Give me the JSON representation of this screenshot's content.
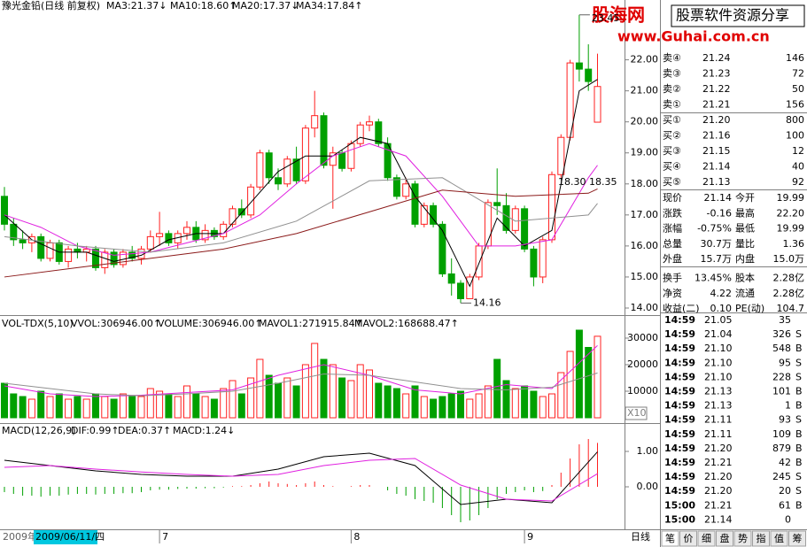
{
  "chart_data": [
    {
      "type": "candlestick",
      "title": "豫光金铅(日线 前复权)",
      "up_color": "#ff2020",
      "down_color": "#00a000",
      "categories": [
        null,
        null,
        null,
        null,
        null,
        null,
        null,
        null,
        null,
        null,
        null,
        null,
        null,
        null,
        null,
        null,
        null,
        "7",
        null,
        null,
        null,
        null,
        null,
        null,
        null,
        null,
        null,
        null,
        null,
        null,
        null,
        null,
        null,
        null,
        null,
        null,
        null,
        null,
        "8",
        null,
        null,
        null,
        null,
        null,
        null,
        null,
        null,
        null,
        null,
        null,
        null,
        null,
        null,
        null,
        null,
        null,
        null,
        "9",
        null,
        null,
        null,
        null,
        null,
        null,
        null,
        null
      ],
      "ohlc": [
        [
          17.6,
          17.9,
          16.5,
          16.7
        ],
        [
          16.7,
          16.9,
          16.0,
          16.2
        ],
        [
          16.2,
          16.5,
          15.9,
          16.1
        ],
        [
          16.1,
          16.4,
          15.8,
          16.3
        ],
        [
          16.3,
          16.4,
          15.5,
          15.6
        ],
        [
          15.6,
          16.2,
          15.5,
          16.1
        ],
        [
          16.1,
          16.2,
          15.4,
          15.5
        ],
        [
          15.5,
          16.0,
          15.3,
          15.9
        ],
        [
          15.9,
          16.1,
          15.6,
          15.8
        ],
        [
          15.8,
          16.0,
          15.5,
          15.9
        ],
        [
          15.9,
          16.0,
          15.2,
          15.3
        ],
        [
          15.3,
          15.9,
          15.1,
          15.8
        ],
        [
          15.8,
          15.9,
          15.3,
          15.4
        ],
        [
          15.4,
          15.9,
          15.3,
          15.8
        ],
        [
          15.8,
          16.0,
          15.5,
          15.6
        ],
        [
          15.6,
          16.0,
          15.4,
          15.9
        ],
        [
          15.9,
          16.5,
          15.8,
          16.3
        ],
        [
          16.3,
          17.1,
          16.0,
          16.4
        ],
        [
          16.4,
          16.5,
          16.0,
          16.1
        ],
        [
          16.1,
          16.5,
          15.9,
          16.4
        ],
        [
          16.4,
          16.8,
          16.2,
          16.6
        ],
        [
          16.6,
          16.8,
          16.1,
          16.2
        ],
        [
          16.2,
          16.7,
          16.1,
          16.5
        ],
        [
          16.5,
          16.6,
          16.2,
          16.3
        ],
        [
          16.3,
          16.8,
          16.2,
          16.7
        ],
        [
          16.7,
          17.3,
          16.6,
          17.2
        ],
        [
          17.2,
          17.5,
          16.9,
          17.0
        ],
        [
          17.0,
          18.0,
          16.9,
          17.9
        ],
        [
          17.9,
          19.1,
          17.8,
          19.0
        ],
        [
          19.0,
          19.1,
          18.0,
          18.2
        ],
        [
          18.2,
          18.5,
          17.8,
          18.0
        ],
        [
          18.0,
          18.9,
          17.9,
          18.8
        ],
        [
          18.8,
          19.2,
          18.0,
          18.1
        ],
        [
          18.1,
          19.9,
          18.0,
          19.8
        ],
        [
          19.8,
          21.0,
          19.5,
          20.2
        ],
        [
          20.2,
          20.3,
          18.5,
          18.6
        ],
        [
          18.6,
          19.2,
          17.2,
          19.0
        ],
        [
          19.0,
          19.1,
          18.4,
          18.5
        ],
        [
          18.5,
          19.4,
          18.4,
          19.3
        ],
        [
          19.3,
          20.0,
          19.2,
          19.9
        ],
        [
          19.9,
          20.2,
          19.7,
          20.0
        ],
        [
          20.0,
          20.1,
          19.2,
          19.3
        ],
        [
          19.3,
          19.5,
          18.1,
          18.2
        ],
        [
          18.2,
          18.3,
          17.5,
          17.6
        ],
        [
          17.6,
          18.2,
          17.5,
          18.0
        ],
        [
          18.0,
          18.1,
          16.6,
          16.7
        ],
        [
          16.7,
          17.4,
          16.6,
          17.3
        ],
        [
          17.3,
          17.4,
          16.6,
          16.7
        ],
        [
          16.7,
          16.8,
          15.0,
          15.1
        ],
        [
          15.1,
          15.6,
          14.4,
          14.8
        ],
        [
          14.8,
          14.9,
          14.16,
          14.3
        ],
        [
          14.3,
          15.1,
          14.3,
          15.0
        ],
        [
          15.0,
          16.1,
          14.9,
          16.0
        ],
        [
          16.0,
          17.5,
          15.9,
          17.4
        ],
        [
          17.4,
          18.5,
          17.0,
          17.3
        ],
        [
          17.3,
          17.7,
          16.4,
          16.5
        ],
        [
          16.5,
          17.3,
          16.4,
          17.2
        ],
        [
          17.2,
          17.3,
          15.8,
          15.9
        ],
        [
          15.9,
          16.0,
          14.7,
          15.0
        ],
        [
          15.0,
          16.3,
          14.8,
          16.2
        ],
        [
          16.2,
          18.4,
          16.1,
          18.3
        ],
        [
          18.3,
          19.6,
          18.2,
          19.5
        ],
        [
          19.5,
          22.0,
          19.4,
          21.9
        ],
        [
          21.9,
          23.45,
          21.3,
          21.7
        ],
        [
          21.7,
          22.5,
          21.0,
          21.3
        ],
        [
          19.99,
          22.2,
          19.99,
          21.14
        ]
      ],
      "series": [
        {
          "name": "MA3:21.37↓",
          "color": "#000000",
          "x": [
            0,
            3,
            6,
            9,
            12,
            15,
            18,
            21,
            24,
            27,
            30,
            33,
            36,
            39,
            42,
            45,
            48,
            51,
            54,
            57,
            60,
            63,
            65
          ],
          "values": [
            17.0,
            16.2,
            15.8,
            15.8,
            15.5,
            15.7,
            16.2,
            16.4,
            16.4,
            17.4,
            18.4,
            18.9,
            18.9,
            19.5,
            19.3,
            17.6,
            16.5,
            14.7,
            16.9,
            16.0,
            16.5,
            21.0,
            21.37
          ]
        },
        {
          "name": "MA10:18.60↑",
          "color": "#e020e0",
          "x": [
            0,
            4,
            8,
            12,
            16,
            20,
            24,
            28,
            32,
            36,
            40,
            44,
            48,
            52,
            56,
            60,
            64,
            65
          ],
          "values": [
            17.0,
            16.6,
            16.0,
            15.7,
            15.8,
            16.1,
            16.4,
            17.0,
            18.0,
            18.9,
            19.3,
            18.9,
            17.6,
            16.0,
            16.0,
            16.2,
            18.2,
            18.6
          ]
        },
        {
          "name": "MA20:17.37↓",
          "color": "#909090",
          "x": [
            0,
            8,
            16,
            24,
            32,
            40,
            48,
            56,
            64,
            65
          ],
          "values": [
            16.3,
            16.0,
            15.8,
            16.1,
            16.8,
            18.1,
            18.2,
            16.8,
            17.0,
            17.37
          ]
        },
        {
          "name": "MA34:17.84↑",
          "color": "#8b1a1a",
          "x": [
            0,
            8,
            16,
            24,
            32,
            40,
            48,
            56,
            64,
            65
          ],
          "values": [
            15.0,
            15.3,
            15.6,
            15.9,
            16.4,
            17.1,
            17.8,
            17.6,
            17.7,
            17.84
          ]
        }
      ],
      "annotation": "18.30 18.35",
      "ylim": [
        13.8,
        23.7
      ],
      "yticks": [
        {
          "value": 14,
          "label": "14.00"
        },
        {
          "value": 15,
          "label": "15.00"
        },
        {
          "value": 16,
          "label": "16.00"
        },
        {
          "value": 17,
          "label": "17.00"
        },
        {
          "value": 18,
          "label": "18.00"
        },
        {
          "value": 19,
          "label": "19.00"
        },
        {
          "value": 20,
          "label": "20.00"
        },
        {
          "value": 21,
          "label": "21.00"
        },
        {
          "value": 22,
          "label": "22.00"
        }
      ],
      "year": "2009年",
      "cursor_date": "2009/06/11/四",
      "period": "日线"
    },
    {
      "type": "bar",
      "title": "VOL-TDX(5,10)",
      "subtitle": "VVOL:306946.00↑",
      "unit_label": "X10",
      "series": [
        {
          "name": "VOLUME:306946.00↑",
          "color": "#e020e0",
          "values": [
            13000,
            9000,
            8000,
            7000,
            10000,
            8000,
            9000,
            7000,
            8000,
            7000,
            9000,
            8000,
            7000,
            9000,
            8000,
            8000,
            11000,
            10000,
            9000,
            8000,
            12000,
            9000,
            8000,
            7000,
            11000,
            14000,
            9000,
            15000,
            22000,
            16000,
            13000,
            15000,
            12000,
            20000,
            28000,
            22000,
            20000,
            15000,
            14000,
            20000,
            18000,
            13000,
            12000,
            11000,
            9000,
            12000,
            8000,
            7000,
            8000,
            9000,
            10000,
            7000,
            9000,
            12000,
            22000,
            14000,
            11000,
            12000,
            10000,
            8000,
            9000,
            17000,
            25000,
            33000,
            26500,
            30695
          ]
        },
        {
          "name": "MAVOL1:271915.84↑",
          "color": "#e020e0",
          "x": [
            0,
            5,
            10,
            15,
            20,
            25,
            30,
            35,
            40,
            45,
            50,
            55,
            60,
            65
          ],
          "values": [
            12000,
            9000,
            8000,
            8500,
            9500,
            10500,
            16000,
            20000,
            16000,
            10500,
            9000,
            12500,
            11000,
            27192
          ]
        },
        {
          "name": "MAVOL2:168688.47↑",
          "color": "#909090",
          "x": [
            0,
            5,
            10,
            15,
            20,
            25,
            30,
            35,
            40,
            45,
            50,
            55,
            60,
            65
          ],
          "values": [
            13000,
            11000,
            9000,
            8300,
            9000,
            10000,
            13000,
            16500,
            16000,
            13500,
            11000,
            10500,
            11500,
            16869
          ]
        }
      ],
      "ylim": [
        0,
        37000
      ],
      "yticks": [
        10000,
        20000,
        30000
      ]
    },
    {
      "type": "macd",
      "title": "MACD(12,26,9)",
      "series": [
        {
          "name": "DIF:0.99↑",
          "color": "#000000",
          "x": [
            0,
            5,
            10,
            15,
            20,
            25,
            30,
            35,
            40,
            45,
            50,
            55,
            60,
            65
          ],
          "values": [
            0.75,
            0.6,
            0.45,
            0.35,
            0.3,
            0.3,
            0.5,
            0.85,
            0.95,
            0.6,
            -0.5,
            -0.35,
            -0.45,
            0.99
          ]
        },
        {
          "name": "DEA:0.37↑",
          "color": "#e020e0",
          "x": [
            0,
            5,
            10,
            15,
            20,
            25,
            30,
            35,
            40,
            45,
            50,
            55,
            60,
            65
          ],
          "values": [
            0.55,
            0.6,
            0.5,
            0.42,
            0.35,
            0.3,
            0.35,
            0.6,
            0.75,
            0.8,
            0.05,
            -0.35,
            -0.4,
            0.37
          ]
        },
        {
          "name": "MACD:1.24↓",
          "color": "#909090",
          "values": [
            -0.15,
            -0.2,
            -0.25,
            -0.25,
            -0.28,
            -0.25,
            -0.25,
            -0.22,
            -0.2,
            -0.2,
            -0.22,
            -0.2,
            -0.2,
            -0.18,
            -0.18,
            -0.15,
            -0.1,
            -0.08,
            -0.08,
            -0.06,
            -0.05,
            -0.05,
            -0.04,
            -0.04,
            -0.02,
            0.02,
            0.02,
            0.05,
            0.1,
            0.15,
            0.1,
            0.08,
            0.05,
            0.1,
            0.15,
            0.05,
            0.02,
            0.0,
            0.02,
            0.05,
            0.05,
            0.0,
            -0.1,
            -0.2,
            -0.25,
            -0.35,
            -0.4,
            -0.45,
            -0.6,
            -0.8,
            -1.0,
            -0.95,
            -0.8,
            -0.6,
            -0.35,
            -0.2,
            -0.15,
            -0.1,
            -0.15,
            -0.12,
            0.05,
            0.4,
            0.8,
            1.2,
            1.35,
            1.24
          ]
        }
      ],
      "ylim": [
        -1.2,
        1.7
      ],
      "yticks": [
        {
          "value": 0,
          "label": "0.00"
        },
        {
          "value": 1,
          "label": "1.00"
        }
      ]
    }
  ],
  "watermark": {
    "name": "股海网",
    "slogan": "股票软件资源分享",
    "url": "www.Guhai.com.cn"
  },
  "quote": {
    "book": [
      [
        "卖④",
        "21.24",
        "146"
      ],
      [
        "卖③",
        "21.23",
        "72"
      ],
      [
        "卖②",
        "21.22",
        "50"
      ],
      [
        "卖①",
        "21.21",
        "156"
      ],
      [
        "买①",
        "21.20",
        "800"
      ],
      [
        "买②",
        "21.16",
        "100"
      ],
      [
        "买③",
        "21.15",
        "12"
      ],
      [
        "买④",
        "21.14",
        "40"
      ],
      [
        "买⑤",
        "21.13",
        "92"
      ]
    ],
    "stats": [
      [
        "现价",
        "21.14",
        "今开",
        "19.99"
      ],
      [
        "涨跌",
        "-0.16",
        "最高",
        "22.20"
      ],
      [
        "涨幅",
        "-0.75%",
        "最低",
        "19.99"
      ],
      [
        "总量",
        "30.7万",
        "量比",
        "1.36"
      ],
      [
        "外盘",
        "15.7万",
        "内盘",
        "15.0万"
      ],
      [
        "换手",
        "13.45%",
        "股本",
        "2.28亿"
      ],
      [
        "净资",
        "4.22",
        "流通",
        "2.28亿"
      ],
      [
        "收益(二)",
        "0.10",
        "PE(动)",
        "104.7"
      ]
    ],
    "ticks": [
      [
        "14:59",
        "21.05",
        "35"
      ],
      [
        "14:59",
        "21.04",
        "326",
        "S"
      ],
      [
        "14:59",
        "21.10",
        "548",
        "B"
      ],
      [
        "14:59",
        "21.10",
        "95",
        "S"
      ],
      [
        "14:59",
        "21.10",
        "228",
        "S"
      ],
      [
        "14:59",
        "21.13",
        "101",
        "B"
      ],
      [
        "14:59",
        "21.13",
        "1",
        "B"
      ],
      [
        "14:59",
        "21.11",
        "93",
        "S"
      ],
      [
        "14:59",
        "21.11",
        "109",
        "B"
      ],
      [
        "14:59",
        "21.20",
        "879",
        "B"
      ],
      [
        "14:59",
        "21.21",
        "42",
        "B"
      ],
      [
        "14:59",
        "21.20",
        "245",
        "S"
      ],
      [
        "14:59",
        "21.20",
        "20",
        "S"
      ],
      [
        "15:00",
        "21.21",
        "61",
        "B"
      ],
      [
        "15:00",
        "21.14",
        "0"
      ]
    ],
    "tabs": [
      "笔",
      "价",
      "细",
      "盘",
      "势",
      "指",
      "值",
      "筹"
    ]
  }
}
